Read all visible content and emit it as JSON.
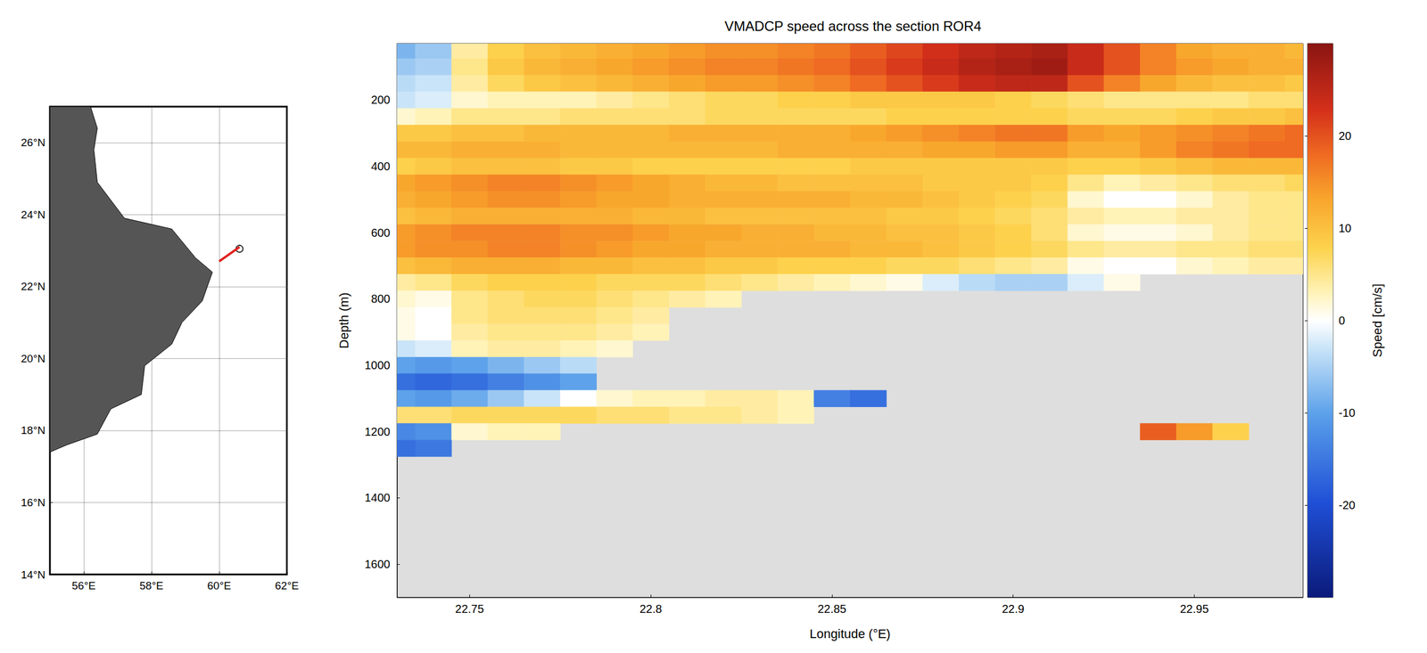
{
  "chart_data": [
    {
      "type": "map",
      "xlim": [
        55,
        62
      ],
      "ylim": [
        14,
        27
      ],
      "xticks": [
        {
          "value": 56,
          "label": "56°E"
        },
        {
          "value": 58,
          "label": "58°E"
        },
        {
          "value": 60,
          "label": "60°E"
        },
        {
          "value": 62,
          "label": "62°E"
        }
      ],
      "yticks": [
        {
          "value": 14,
          "label": "14°N"
        },
        {
          "value": 16,
          "label": "16°N"
        },
        {
          "value": 18,
          "label": "18°N"
        },
        {
          "value": 20,
          "label": "20°N"
        },
        {
          "value": 22,
          "label": "22°N"
        },
        {
          "value": 24,
          "label": "24°N"
        },
        {
          "value": 26,
          "label": "26°N"
        }
      ],
      "grid": true,
      "land": [
        [
          55,
          27
        ],
        [
          56.2,
          27
        ],
        [
          56.4,
          26.4
        ],
        [
          56.3,
          25.8
        ],
        [
          56.4,
          24.9
        ],
        [
          57.2,
          23.9
        ],
        [
          58.6,
          23.6
        ],
        [
          59.3,
          22.8
        ],
        [
          59.8,
          22.4
        ],
        [
          59.5,
          21.6
        ],
        [
          58.9,
          21.0
        ],
        [
          58.6,
          20.4
        ],
        [
          57.8,
          19.8
        ],
        [
          57.7,
          19.0
        ],
        [
          56.8,
          18.6
        ],
        [
          56.4,
          17.9
        ],
        [
          55.5,
          17.6
        ],
        [
          55,
          17.4
        ]
      ],
      "section": [
        [
          60.0,
          22.7
        ],
        [
          60.6,
          23.1
        ]
      ],
      "station": [
        60.6,
        23.05
      ],
      "color": "#e0201c"
    },
    {
      "type": "heatmap",
      "title": "VMADCP speed across the section ROR4",
      "x_label": "Longitude (°E)",
      "y_label": "Depth (m)",
      "xlim": [
        22.73,
        22.98
      ],
      "ylim": [
        1700,
        30
      ],
      "xticks": [
        22.75,
        22.8,
        22.85,
        22.9,
        22.95
      ],
      "yticks": [
        200,
        400,
        600,
        800,
        1000,
        1200,
        1400,
        1600
      ],
      "grid": false,
      "colorbar": {
        "label": "Speed [cm/s]",
        "range": [
          -30,
          30
        ],
        "ticks": [
          -20,
          -10,
          0,
          10,
          20
        ]
      },
      "x": [
        22.73,
        22.74,
        22.75,
        22.76,
        22.77,
        22.78,
        22.79,
        22.8,
        22.81,
        22.82,
        22.83,
        22.84,
        22.85,
        22.86,
        22.87,
        22.88,
        22.89,
        22.9,
        22.91,
        22.92,
        22.93,
        22.94,
        22.95,
        22.96,
        22.97,
        22.98
      ],
      "depth": [
        50,
        100,
        150,
        200,
        250,
        300,
        350,
        400,
        450,
        500,
        550,
        600,
        650,
        700,
        750,
        800,
        850,
        900,
        950,
        1000,
        1050,
        1100,
        1150,
        1200,
        1250
      ],
      "speed": [
        [
          -8,
          -6,
          4,
          8,
          10,
          11,
          12,
          13,
          14,
          15,
          15,
          16,
          17,
          19,
          21,
          23,
          25,
          26,
          27,
          24,
          20,
          16,
          13,
          12,
          12,
          11
        ],
        [
          -6,
          -5,
          5,
          9,
          11,
          12,
          13,
          14,
          15,
          16,
          16,
          17,
          18,
          20,
          22,
          24,
          26,
          27,
          28,
          24,
          20,
          16,
          14,
          13,
          12,
          12
        ],
        [
          -4,
          -3,
          4,
          7,
          9,
          10,
          11,
          12,
          13,
          14,
          14,
          15,
          16,
          18,
          20,
          22,
          24,
          25,
          25,
          20,
          16,
          13,
          11,
          10,
          10,
          9
        ],
        [
          -3,
          -2,
          2,
          3,
          3,
          3,
          4,
          5,
          6,
          7,
          7,
          8,
          8,
          9,
          9,
          9,
          9,
          8,
          7,
          6,
          5,
          5,
          5,
          5,
          6,
          6
        ],
        [
          2,
          3,
          5,
          5,
          5,
          6,
          6,
          6,
          6,
          7,
          7,
          7,
          7,
          7,
          8,
          8,
          8,
          8,
          8,
          7,
          7,
          7,
          8,
          9,
          9,
          10
        ],
        [
          9,
          9,
          10,
          10,
          11,
          11,
          11,
          11,
          12,
          12,
          12,
          12,
          12,
          13,
          14,
          15,
          16,
          17,
          17,
          14,
          13,
          14,
          15,
          16,
          17,
          18
        ],
        [
          11,
          11,
          12,
          12,
          12,
          11,
          11,
          11,
          11,
          11,
          11,
          12,
          12,
          12,
          12,
          13,
          13,
          14,
          14,
          12,
          12,
          14,
          16,
          17,
          18,
          18
        ],
        [
          8,
          9,
          10,
          10,
          10,
          9,
          9,
          8,
          8,
          8,
          8,
          8,
          8,
          9,
          9,
          9,
          9,
          9,
          9,
          8,
          8,
          9,
          10,
          11,
          11,
          11
        ],
        [
          13,
          14,
          15,
          16,
          16,
          15,
          14,
          13,
          12,
          11,
          11,
          10,
          10,
          10,
          10,
          9,
          9,
          9,
          8,
          5,
          3,
          4,
          5,
          6,
          6,
          7
        ],
        [
          12,
          13,
          14,
          15,
          15,
          14,
          13,
          13,
          12,
          12,
          12,
          12,
          12,
          11,
          11,
          10,
          9,
          8,
          7,
          2,
          0,
          0,
          2,
          4,
          5,
          5
        ],
        [
          10,
          11,
          12,
          12,
          12,
          12,
          12,
          11,
          11,
          10,
          10,
          10,
          10,
          10,
          9,
          9,
          8,
          7,
          6,
          4,
          3,
          3,
          4,
          4,
          5,
          5
        ],
        [
          14,
          15,
          16,
          16,
          16,
          15,
          15,
          14,
          13,
          13,
          12,
          12,
          11,
          11,
          10,
          10,
          9,
          8,
          6,
          2,
          1,
          1,
          2,
          4,
          5,
          5
        ],
        [
          14,
          15,
          15,
          16,
          16,
          15,
          14,
          13,
          13,
          12,
          12,
          12,
          12,
          11,
          11,
          10,
          9,
          8,
          7,
          5,
          4,
          4,
          5,
          5,
          6,
          6
        ],
        [
          10,
          11,
          12,
          12,
          12,
          11,
          11,
          10,
          10,
          9,
          9,
          8,
          8,
          8,
          7,
          7,
          6,
          5,
          4,
          1,
          0,
          0,
          2,
          3,
          4,
          4
        ],
        [
          4,
          5,
          7,
          8,
          8,
          8,
          7,
          7,
          7,
          6,
          5,
          4,
          3,
          2,
          1,
          -2,
          -4,
          -5,
          -5,
          -2,
          1,
          null,
          null,
          null,
          null,
          null
        ],
        [
          2,
          1,
          5,
          6,
          7,
          7,
          6,
          5,
          4,
          3,
          null,
          null,
          null,
          null,
          null,
          null,
          null,
          null,
          null,
          null,
          null,
          null,
          null,
          null,
          null,
          null
        ],
        [
          1,
          0,
          5,
          6,
          6,
          6,
          5,
          4,
          null,
          null,
          null,
          null,
          null,
          null,
          null,
          null,
          null,
          null,
          null,
          null,
          null,
          null,
          null,
          null,
          null,
          null
        ],
        [
          1,
          0,
          4,
          5,
          5,
          5,
          4,
          3,
          null,
          null,
          null,
          null,
          null,
          null,
          null,
          null,
          null,
          null,
          null,
          null,
          null,
          null,
          null,
          null,
          null,
          null
        ],
        [
          -3,
          -2,
          3,
          4,
          4,
          3,
          2,
          null,
          null,
          null,
          null,
          null,
          null,
          null,
          null,
          null,
          null,
          null,
          null,
          null,
          null,
          null,
          null,
          null,
          null,
          null
        ],
        [
          -10,
          -11,
          -10,
          -8,
          -6,
          -4,
          null,
          null,
          null,
          null,
          null,
          null,
          null,
          null,
          null,
          null,
          null,
          null,
          null,
          null,
          null,
          null,
          null,
          null,
          null,
          null
        ],
        [
          -16,
          -17,
          -16,
          -14,
          -12,
          -10,
          null,
          null,
          null,
          null,
          null,
          null,
          null,
          null,
          null,
          null,
          null,
          null,
          null,
          null,
          null,
          null,
          null,
          null,
          null,
          null
        ],
        [
          -10,
          -11,
          -9,
          -6,
          -3,
          0,
          2,
          3,
          3,
          4,
          4,
          3,
          -14,
          -16,
          null,
          null,
          null,
          null,
          null,
          null,
          null,
          null,
          null,
          null,
          null,
          null
        ],
        [
          6,
          6,
          7,
          7,
          7,
          7,
          6,
          6,
          5,
          5,
          4,
          3,
          null,
          null,
          null,
          null,
          null,
          null,
          null,
          null,
          null,
          null,
          null,
          null,
          null,
          null
        ],
        [
          -13,
          -12,
          2,
          3,
          3,
          null,
          null,
          null,
          null,
          null,
          null,
          null,
          null,
          null,
          null,
          null,
          null,
          null,
          null,
          null,
          null,
          19,
          14,
          8,
          null,
          null
        ],
        [
          -16,
          -15,
          null,
          null,
          null,
          null,
          null,
          null,
          null,
          null,
          null,
          null,
          null,
          null,
          null,
          null,
          null,
          null,
          null,
          null,
          null,
          null,
          null,
          null,
          null,
          null
        ]
      ]
    }
  ]
}
